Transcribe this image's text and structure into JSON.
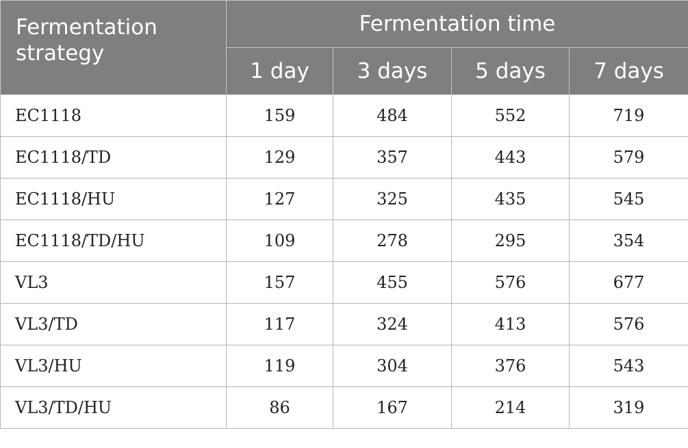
{
  "table": {
    "header_strategy": "Fermentation strategy",
    "header_group": "Fermentation time",
    "columns": [
      "1 day",
      "3 days",
      "5 days",
      "7 days"
    ],
    "rows": [
      {
        "strategy": "EC1118",
        "values": [
          "159",
          "484",
          "552",
          "719"
        ]
      },
      {
        "strategy": "EC1118/TD",
        "values": [
          "129",
          "357",
          "443",
          "579"
        ]
      },
      {
        "strategy": "EC1118/HU",
        "values": [
          "127",
          "325",
          "435",
          "545"
        ]
      },
      {
        "strategy": "EC1118/TD/HU",
        "values": [
          "109",
          "278",
          "295",
          "354"
        ]
      },
      {
        "strategy": "VL3",
        "values": [
          "157",
          "455",
          "576",
          "677"
        ]
      },
      {
        "strategy": "VL3/TD",
        "values": [
          "117",
          "324",
          "413",
          "576"
        ]
      },
      {
        "strategy": "VL3/HU",
        "values": [
          "119",
          "304",
          "376",
          "543"
        ]
      },
      {
        "strategy": "VL3/TD/HU",
        "values": [
          "86",
          "167",
          "214",
          "319"
        ]
      }
    ]
  }
}
